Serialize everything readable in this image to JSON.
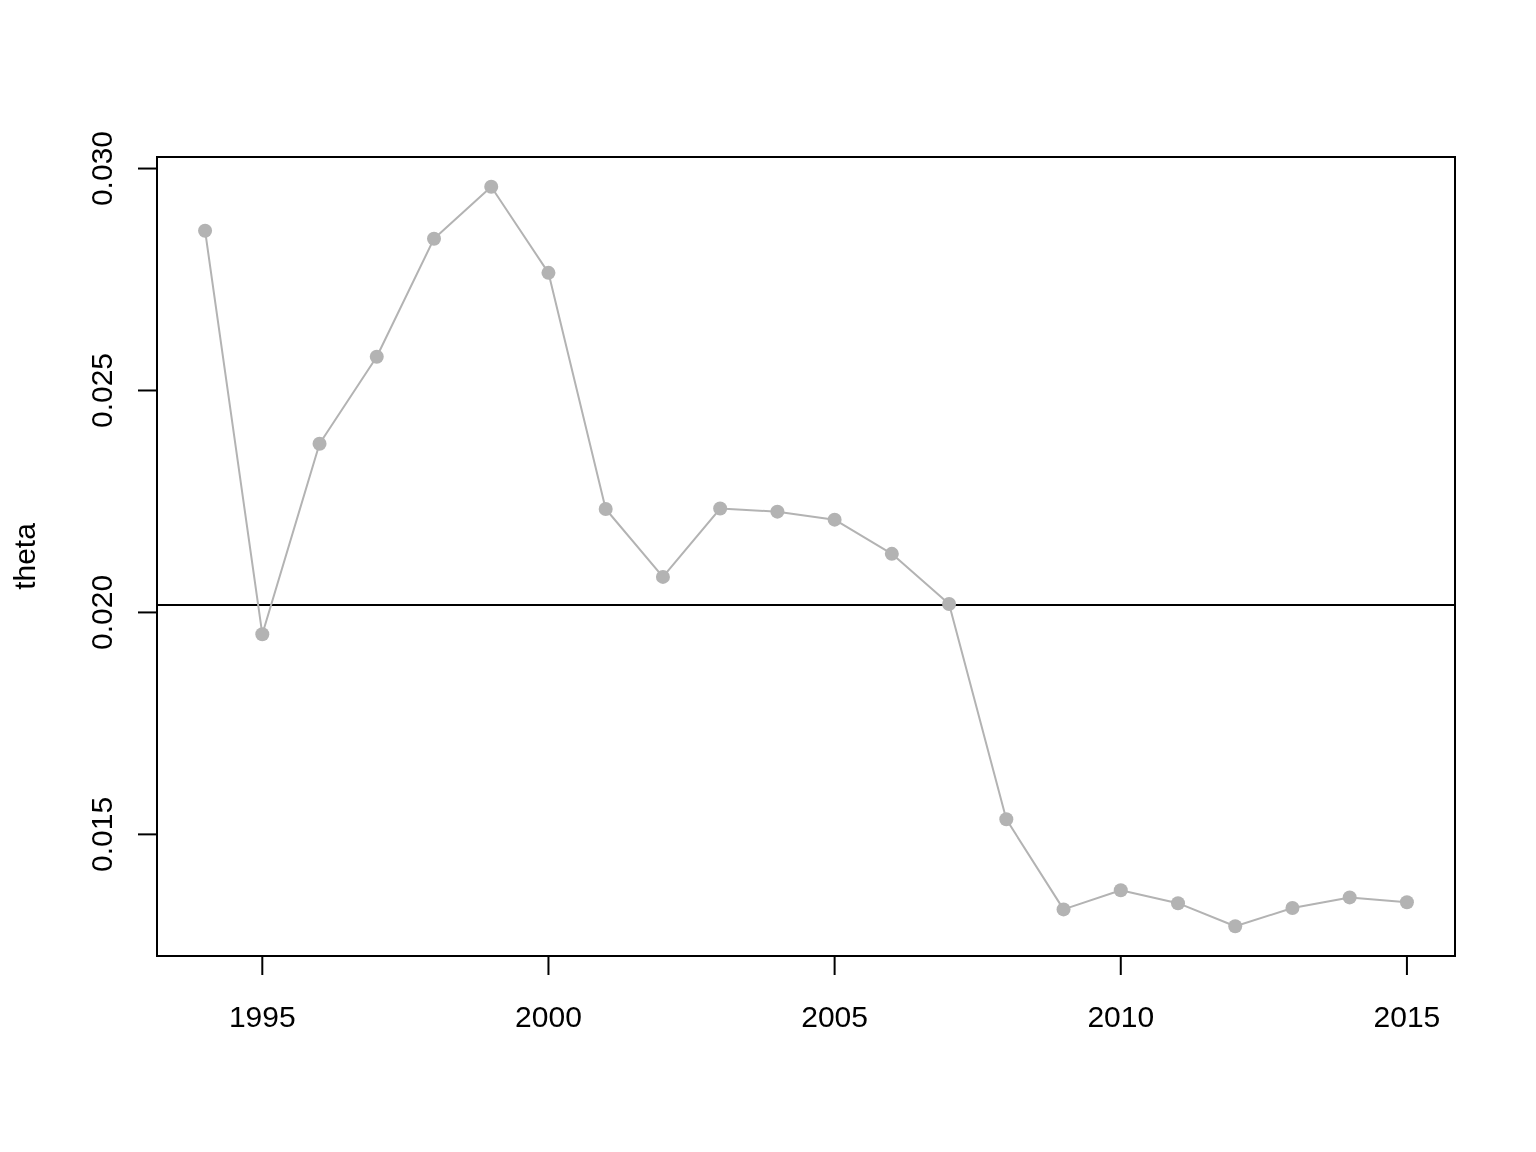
{
  "chart_data": {
    "type": "line",
    "ylabel": "theta",
    "x": [
      1994,
      1995,
      1996,
      1997,
      1998,
      1999,
      2000,
      2001,
      2002,
      2003,
      2004,
      2005,
      2006,
      2007,
      2008,
      2009,
      2010,
      2011,
      2012,
      2013,
      2014,
      2015
    ],
    "series": [
      {
        "color": "#b3b3b3",
        "values": [
          0.0286,
          0.01951,
          0.0238,
          0.02576,
          0.02842,
          0.02959,
          0.02765,
          0.02233,
          0.0208,
          0.02234,
          0.02227,
          0.02209,
          0.02132,
          0.02019,
          0.01534,
          0.01331,
          0.01374,
          0.01345,
          0.01293,
          0.01334,
          0.01358,
          0.01347
        ]
      }
    ],
    "xlim": [
      1993.16,
      2015.84
    ],
    "ylim": [
      0.01226,
      0.03026
    ],
    "xticks": [
      1995,
      2000,
      2005,
      2010,
      2015
    ],
    "yticks": [
      0.015,
      {
        "value": 0.02,
        "label": "0.020"
      },
      0.025,
      {
        "value": 0.03,
        "label": "0.030"
      }
    ],
    "ref_lines": [
      {
        "axis": "y",
        "value": 0.02017,
        "color": "#000000"
      }
    ],
    "marker": "circle",
    "line_style": "solid"
  }
}
